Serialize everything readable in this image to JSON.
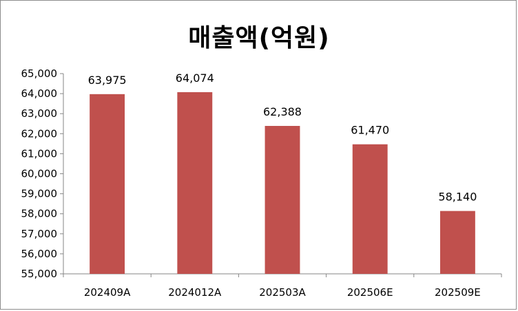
{
  "chart_data": {
    "type": "bar",
    "title": "매출액(억원)",
    "categories": [
      "202409A",
      "2024012A",
      "202503A",
      "202506E",
      "202509E"
    ],
    "values": [
      63975,
      64074,
      62388,
      61470,
      58140
    ],
    "value_labels": [
      "63,975",
      "64,074",
      "62,388",
      "61,470",
      "58,140"
    ],
    "y_ticks": [
      "55,000",
      "56,000",
      "57,000",
      "58,000",
      "59,000",
      "60,000",
      "61,000",
      "62,000",
      "63,000",
      "64,000",
      "65,000"
    ],
    "ylim": [
      55000,
      65000
    ],
    "xlabel": "",
    "ylabel": "",
    "grid": false,
    "legend": "none",
    "bar_color": "#C0504D"
  }
}
